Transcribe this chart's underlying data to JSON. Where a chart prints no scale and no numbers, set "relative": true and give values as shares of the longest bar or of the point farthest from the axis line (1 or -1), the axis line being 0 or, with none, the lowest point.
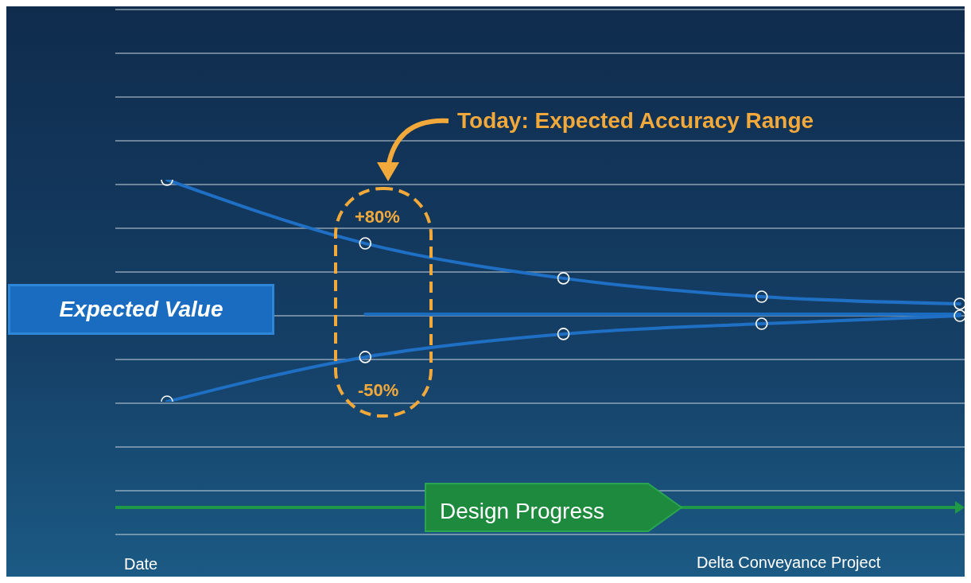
{
  "chart_data": {
    "type": "line",
    "relative": true,
    "categories": [
      null,
      null,
      null,
      null,
      null
    ],
    "series": [
      {
        "color": "#1f6fc4",
        "values": [
          1,
          0.713,
          0.556,
          0.473,
          0.441
        ]
      },
      {
        "name": "Expected Value",
        "color": "#1a6cc0",
        "values": [
          null,
          0.394,
          0.394,
          0.394,
          0.394
        ],
        "marker": "none"
      },
      {
        "color": "#1f6fc4",
        "values": [
          0,
          0.201,
          0.305,
          0.351,
          0.387
        ]
      }
    ],
    "marker": "circle",
    "line_style": "solid",
    "grid": true,
    "annotations": [
      "Today: Expected Accuracy Range",
      "+80%",
      "-50%",
      "Design Progress",
      "Delta Conveyance Project",
      "Date"
    ]
  }
}
